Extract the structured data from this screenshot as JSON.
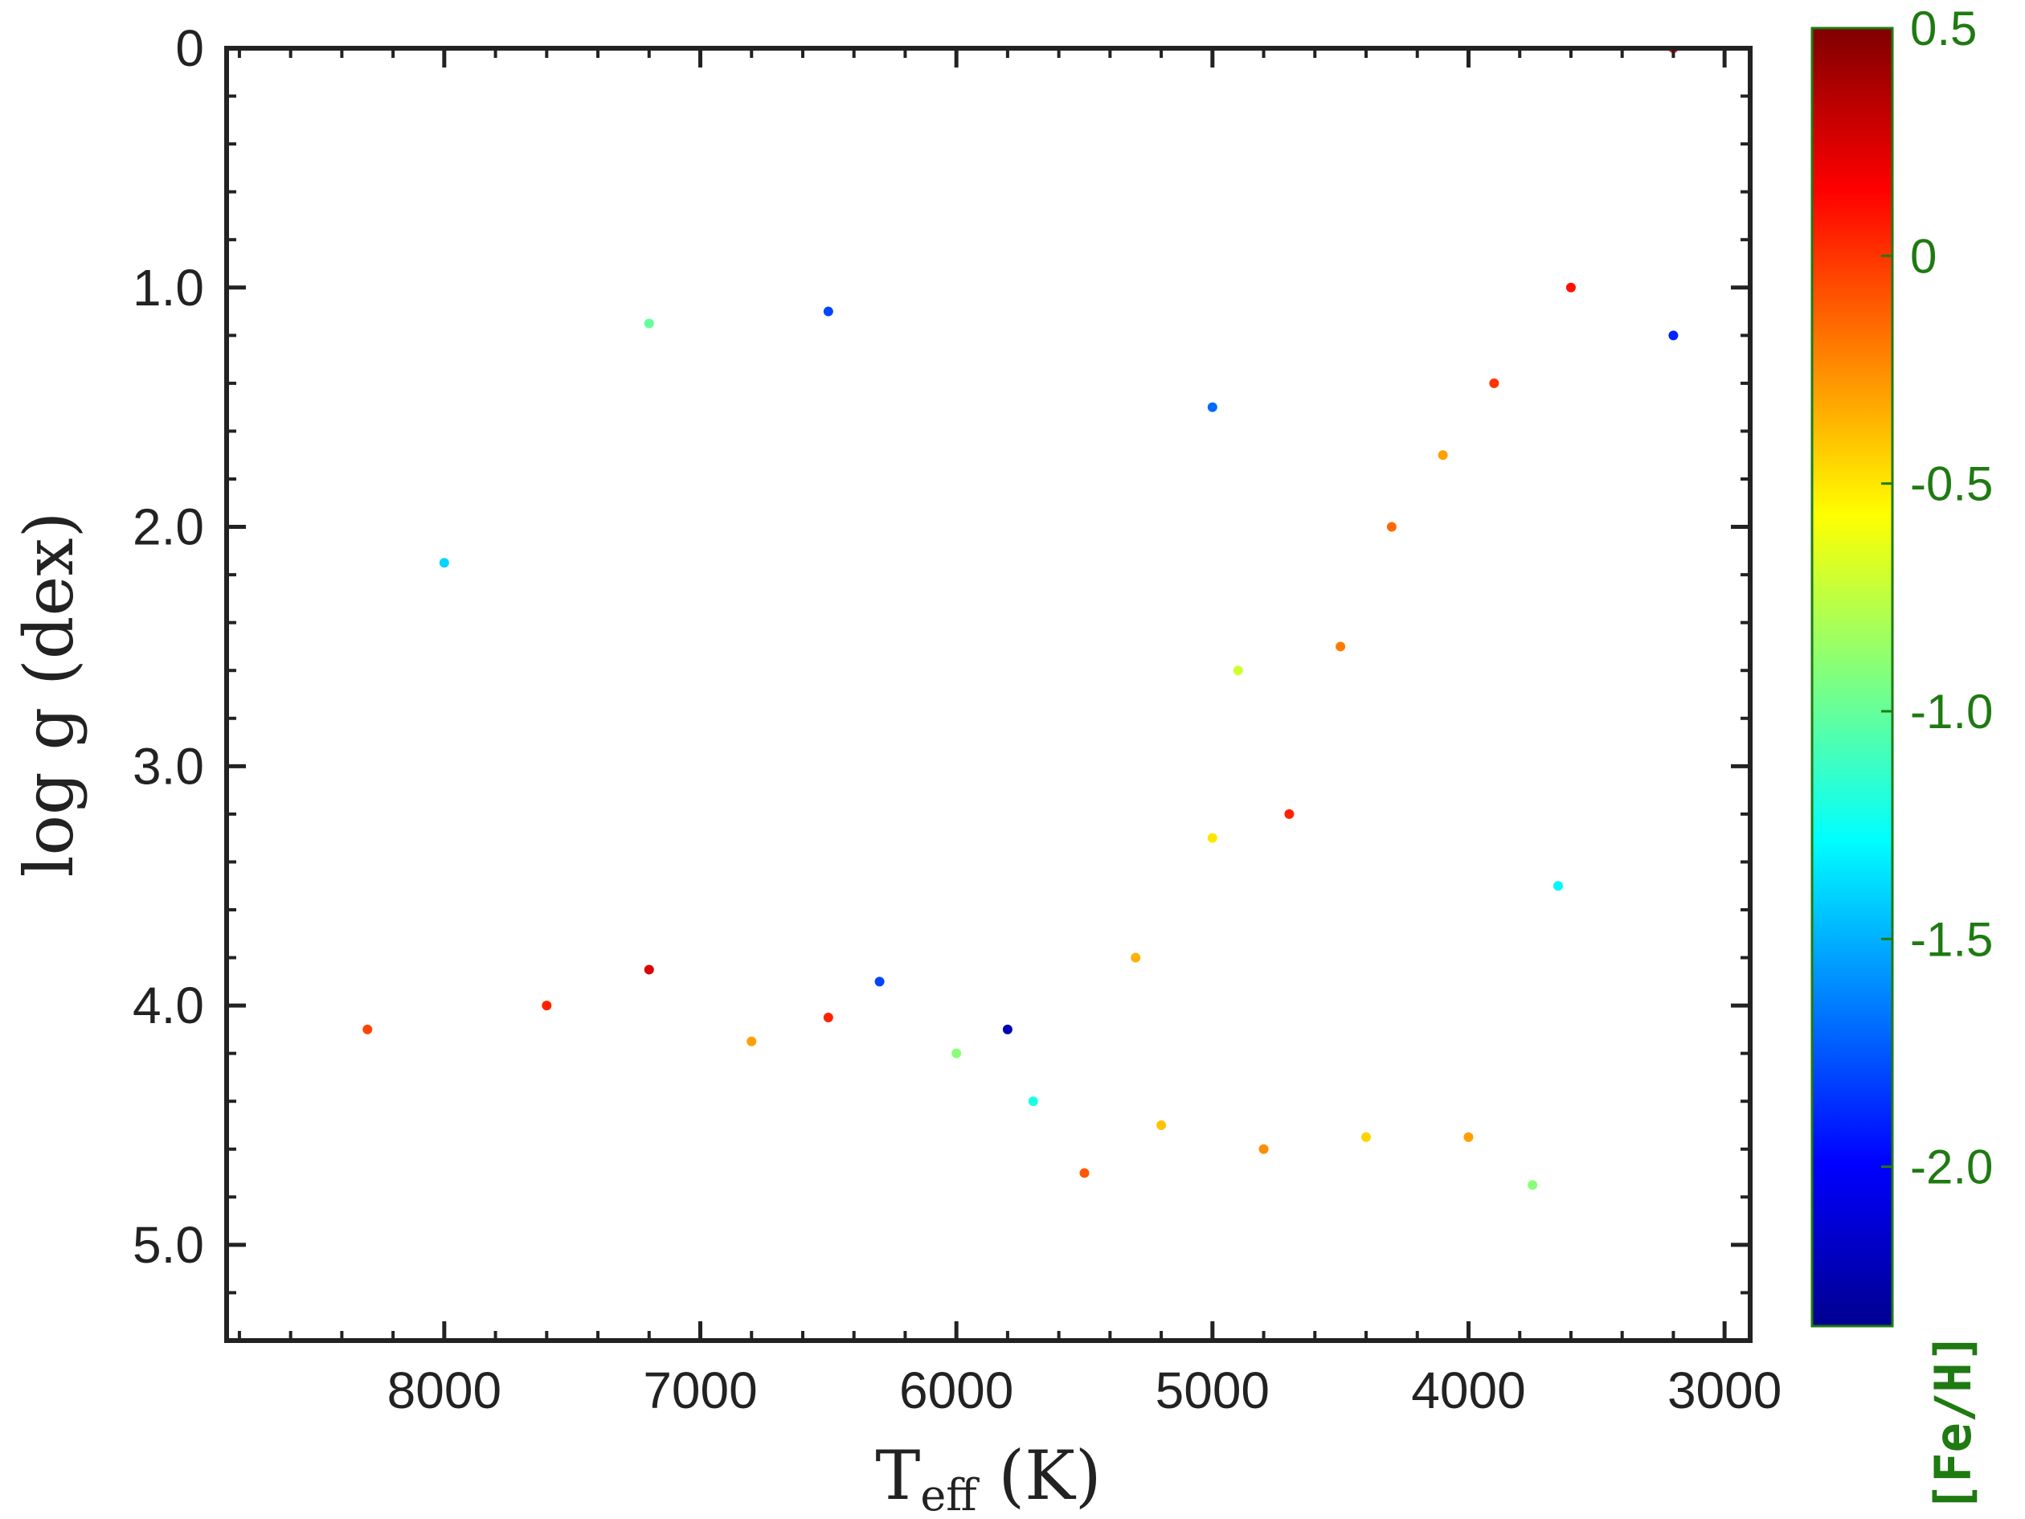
{
  "chart_data": {
    "type": "scatter",
    "xlabel": {
      "main": "T",
      "sub": "eff",
      "unit": " (K)"
    },
    "ylabel": "log g (dex)",
    "xlim": [
      8850,
      2900
    ],
    "ylim": [
      5.4,
      0
    ],
    "x_reversed": true,
    "y_reversed": true,
    "x_ticks": [
      8000,
      7000,
      6000,
      5000,
      4000,
      3000
    ],
    "y_ticks": [
      0,
      1.0,
      2.0,
      3.0,
      4.0,
      5.0
    ],
    "x_tick_labels": [
      "8000",
      "7000",
      "6000",
      "5000",
      "4000",
      "3000"
    ],
    "y_tick_labels": [
      "0",
      "1.0",
      "2.0",
      "3.0",
      "4.0",
      "5.0"
    ],
    "grid": false,
    "colorbar": {
      "label": "[Fe/H]",
      "range": [
        -2.35,
        0.5
      ],
      "ticks": [
        0.5,
        0,
        -0.5,
        -1.0,
        -1.5,
        -2.0
      ],
      "tick_labels": [
        "0.5",
        "0",
        "-0.5",
        "-1.0",
        "-1.5",
        "-2.0"
      ],
      "colormap": "jet",
      "label_color": "#1f7a12"
    },
    "point_groups": [
      {
        "x": 7600,
        "y": 4.0,
        "feh": 0.05
      },
      {
        "x": 7200,
        "y": 3.85,
        "feh": 0.25
      },
      {
        "x": 8300,
        "y": 4.1,
        "feh": -0.05
      },
      {
        "x": 6800,
        "y": 4.15,
        "feh": -0.3
      },
      {
        "x": 6500,
        "y": 4.05,
        "feh": 0.05
      },
      {
        "x": 6300,
        "y": 3.9,
        "feh": -1.8
      },
      {
        "x": 6000,
        "y": 4.2,
        "feh": -0.9
      },
      {
        "x": 5800,
        "y": 4.1,
        "feh": -2.2
      },
      {
        "x": 5700,
        "y": 4.4,
        "feh": -1.2
      },
      {
        "x": 5500,
        "y": 4.7,
        "feh": -0.1
      },
      {
        "x": 5200,
        "y": 4.5,
        "feh": -0.4
      },
      {
        "x": 4800,
        "y": 4.6,
        "feh": -0.25
      },
      {
        "x": 4400,
        "y": 4.55,
        "feh": -0.45
      },
      {
        "x": 4000,
        "y": 4.55,
        "feh": -0.3
      },
      {
        "x": 3750,
        "y": 4.75,
        "feh": -0.9
      },
      {
        "x": 5300,
        "y": 3.8,
        "feh": -0.35
      },
      {
        "x": 5000,
        "y": 3.3,
        "feh": -0.5
      },
      {
        "x": 4900,
        "y": 2.6,
        "feh": -0.7
      },
      {
        "x": 4700,
        "y": 3.2,
        "feh": 0.05
      },
      {
        "x": 4500,
        "y": 2.5,
        "feh": -0.2
      },
      {
        "x": 4300,
        "y": 2.0,
        "feh": -0.15
      },
      {
        "x": 4100,
        "y": 1.7,
        "feh": -0.3
      },
      {
        "x": 3900,
        "y": 1.4,
        "feh": 0.0
      },
      {
        "x": 3600,
        "y": 1.0,
        "feh": 0.1
      },
      {
        "x": 3200,
        "y": 1.2,
        "feh": -1.9
      },
      {
        "x": 5000,
        "y": 1.5,
        "feh": -1.7
      },
      {
        "x": 6500,
        "y": 1.1,
        "feh": -1.8
      },
      {
        "x": 7200,
        "y": 1.15,
        "feh": -1.0
      },
      {
        "x": 8000,
        "y": 2.15,
        "feh": -1.4
      },
      {
        "x": 3650,
        "y": 3.5,
        "feh": -1.3
      },
      {
        "x": 3200,
        "y": 0.0,
        "feh": 0.1
      }
    ]
  }
}
